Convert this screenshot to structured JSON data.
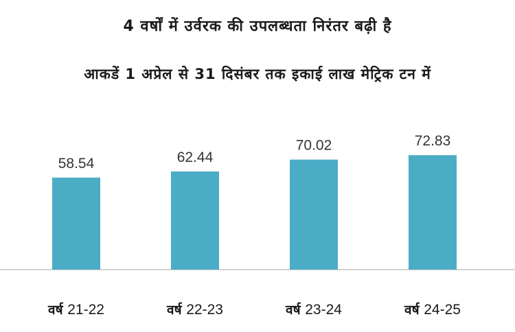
{
  "chart_data": {
    "type": "bar",
    "title": "4 वर्षों में उर्वरक की उपलब्धता निरंतर बढ़ी है",
    "subtitle": "आकडें 1 अप्रेल से 31 दिसंबर तक इकाई लाख मेट्रिक टन में",
    "categories": [
      "वर्ष 21-22",
      "वर्ष 22-23",
      "वर्ष 23-24",
      "वर्ष 24-25"
    ],
    "category_parts": [
      {
        "prefix": "वर्ष",
        "year": "21-22"
      },
      {
        "prefix": "वर्ष",
        "year": "22-23"
      },
      {
        "prefix": "वर्ष",
        "year": "23-24"
      },
      {
        "prefix": "वर्ष",
        "year": "24-25"
      }
    ],
    "values": [
      58.54,
      62.44,
      70.02,
      72.83
    ],
    "data_labels": [
      "58.54",
      "62.44",
      "70.02",
      "72.83"
    ],
    "ylim": [
      0,
      90
    ],
    "grid": false,
    "bar_color": "#4BACC6",
    "xlabel": "",
    "ylabel": ""
  }
}
